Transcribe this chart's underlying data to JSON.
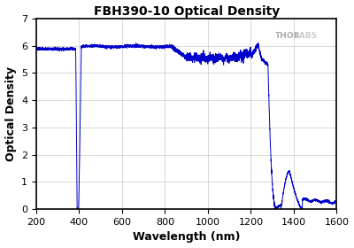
{
  "title": "FBH390-10 Optical Density",
  "xlabel": "Wavelength (nm)",
  "ylabel": "Optical Density",
  "xlim": [
    200,
    1600
  ],
  "ylim": [
    0,
    7
  ],
  "yticks": [
    0,
    1,
    2,
    3,
    4,
    5,
    6,
    7
  ],
  "xticks": [
    200,
    400,
    600,
    800,
    1000,
    1200,
    1400,
    1600
  ],
  "line_color": "#0000CC",
  "background_color": "#ffffff",
  "grid_color": "#bbbbbb",
  "watermark_thor": "THOR",
  "watermark_labs": "LABS",
  "watermark_color_thor": "#aaaaaa",
  "watermark_color_labs": "#cccccc"
}
